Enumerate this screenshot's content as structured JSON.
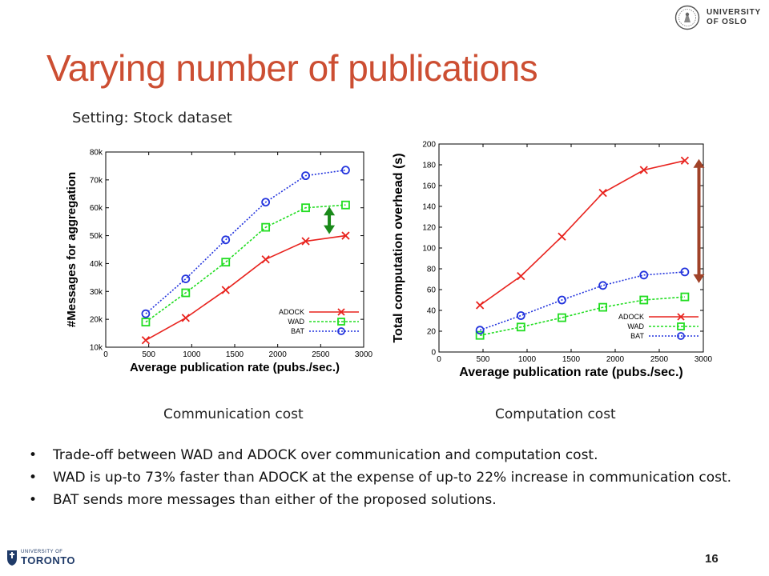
{
  "slide": {
    "title": "Varying number of publications",
    "setting": "Setting: Stock dataset",
    "caption_left": "Communication cost",
    "caption_right": "Computation cost",
    "bullets": [
      "Trade-off between WAD and ADOCK over communication and computation cost.",
      "WAD is up-to 73% faster than ADOCK at the expense of up-to 22% increase in communication cost.",
      "BAT sends more messages than either of the proposed solutions."
    ],
    "page_number": "16"
  },
  "logos": {
    "uio_line1": "UNIVERSITY",
    "uio_line2": "OF OSLO",
    "uio_icon": "seal-icon",
    "uoft_small": "UNIVERSITY OF",
    "uoft_big": "TORONTO",
    "uoft_icon": "crest-icon"
  },
  "colors": {
    "title": "#cc4e32",
    "adock": "#e8231e",
    "wad": "#22dd22",
    "bat": "#2233dd",
    "arrow_left": "#1a8a1a",
    "arrow_right": "#a04228"
  },
  "chart_data": [
    {
      "type": "line",
      "xlabel": "Average publication rate (pubs./sec.)",
      "ylabel": "#Messages for aggregation",
      "xlim": [
        0,
        3000
      ],
      "ylim": [
        10000,
        80000
      ],
      "xticks": [
        0,
        500,
        1000,
        1500,
        2000,
        2500,
        3000
      ],
      "xticklabels": [
        "0",
        "500",
        "1000",
        "1500",
        "2000",
        "2500",
        "3000"
      ],
      "yticks": [
        10000,
        20000,
        30000,
        40000,
        50000,
        60000,
        70000,
        80000
      ],
      "yticklabels": [
        "10k",
        "20k",
        "30k",
        "40k",
        "50k",
        "60k",
        "70k",
        "80k"
      ],
      "legend": "bottom-right",
      "grid": false,
      "annotation": "double-headed arrow between WAD and ADOCK at the last point",
      "series": [
        {
          "name": "ADOCK",
          "marker": "x",
          "x": [
            465,
            930,
            1395,
            1860,
            2325,
            2790
          ],
          "values": [
            12500,
            20500,
            30500,
            41500,
            48000,
            50000
          ]
        },
        {
          "name": "WAD",
          "marker": "square",
          "x": [
            465,
            930,
            1395,
            1860,
            2325,
            2790
          ],
          "values": [
            19000,
            29500,
            40500,
            53000,
            60000,
            61000
          ]
        },
        {
          "name": "BAT",
          "marker": "circle",
          "x": [
            465,
            930,
            1395,
            1860,
            2325,
            2790
          ],
          "values": [
            22000,
            34500,
            48500,
            62000,
            71500,
            73500
          ]
        }
      ]
    },
    {
      "type": "line",
      "xlabel": "Average publication rate (pubs./sec.)",
      "ylabel": "Total computation overhead (s)",
      "xlim": [
        0,
        3000
      ],
      "ylim": [
        0,
        200
      ],
      "xticks": [
        0,
        500,
        1000,
        1500,
        2000,
        2500,
        3000
      ],
      "xticklabels": [
        "0",
        "500",
        "1000",
        "1500",
        "2000",
        "2500",
        "3000"
      ],
      "yticks": [
        0,
        20,
        40,
        60,
        80,
        100,
        120,
        140,
        160,
        180,
        200
      ],
      "yticklabels": [
        "0",
        "20",
        "40",
        "60",
        "80",
        "100",
        "120",
        "140",
        "160",
        "180",
        "200"
      ],
      "legend": "bottom-right",
      "grid": false,
      "annotation": "double-headed arrow between ADOCK and BAT at the last point",
      "series": [
        {
          "name": "ADOCK",
          "marker": "x",
          "x": [
            465,
            930,
            1395,
            1860,
            2325,
            2790
          ],
          "values": [
            45,
            73,
            111,
            153,
            175,
            184
          ]
        },
        {
          "name": "WAD",
          "marker": "square",
          "x": [
            465,
            930,
            1395,
            1860,
            2325,
            2790
          ],
          "values": [
            16,
            24,
            33,
            43,
            50,
            53
          ]
        },
        {
          "name": "BAT",
          "marker": "circle",
          "x": [
            465,
            930,
            1395,
            1860,
            2325,
            2790
          ],
          "values": [
            21,
            35,
            50,
            64,
            74,
            77
          ]
        }
      ]
    }
  ]
}
